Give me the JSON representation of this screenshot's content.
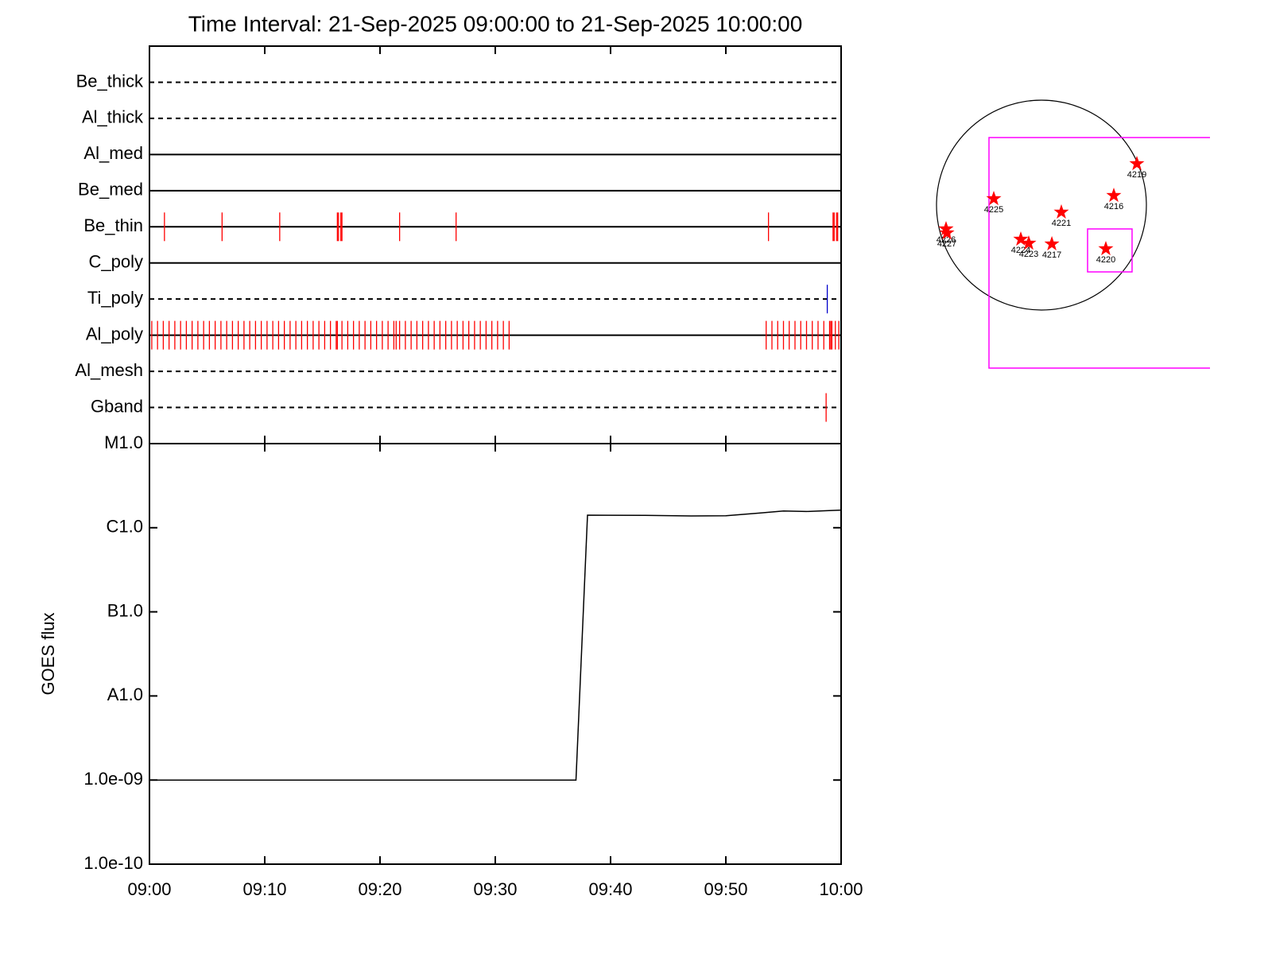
{
  "chart_data": [
    {
      "type": "timeline",
      "title": "Time Interval: 21-Sep-2025 09:00:00 to 21-Sep-2025 10:00:00",
      "categories": [
        "Be_thick",
        "Al_thick",
        "Al_med",
        "Be_med",
        "Be_thin",
        "C_poly",
        "Ti_poly",
        "Al_poly",
        "Al_mesh",
        "Gband"
      ],
      "line_styles": [
        "dashed",
        "dashed",
        "solid",
        "solid",
        "solid",
        "solid",
        "dashed",
        "solid",
        "dashed",
        "dashed"
      ],
      "events": [
        [],
        [],
        [],
        [],
        [
          1.3,
          6.3,
          11.3,
          16.3,
          16.4,
          16.6,
          16.7,
          21.7,
          26.6,
          53.7,
          59.3,
          59.4,
          59.6,
          59.7
        ],
        [],
        [
          58.8
        ],
        [
          0.2,
          0.7,
          1.2,
          1.7,
          2.2,
          2.7,
          3.2,
          3.7,
          4.2,
          4.7,
          5.2,
          5.7,
          6.2,
          6.7,
          7.2,
          7.7,
          8.2,
          8.7,
          9.2,
          9.7,
          10.2,
          10.7,
          11.2,
          11.7,
          12.2,
          12.7,
          13.2,
          13.7,
          14.2,
          14.7,
          15.2,
          15.7,
          16.2,
          16.3,
          16.7,
          17.2,
          17.7,
          18.2,
          18.7,
          19.2,
          19.7,
          20.2,
          20.7,
          21.2,
          21.4,
          21.7,
          22.2,
          22.7,
          23.2,
          23.7,
          24.2,
          24.7,
          25.2,
          25.7,
          26.2,
          26.7,
          27.2,
          27.7,
          28.2,
          28.7,
          29.2,
          29.7,
          30.2,
          30.7,
          31.2,
          53.5,
          54.0,
          54.5,
          55.0,
          55.5,
          56.0,
          56.5,
          57.0,
          57.5,
          58.0,
          58.5,
          59.0,
          59.1,
          59.2,
          59.5,
          59.8
        ],
        [],
        [
          58.7
        ]
      ],
      "event_colors": [
        "#ff0000",
        "#ff0000",
        "#ff0000",
        "#ff0000",
        "#ff0000",
        "#ff0000",
        "#0000cc",
        "#ff0000",
        "#ff0000",
        "#ff0000"
      ],
      "xlim": [
        0,
        60
      ]
    },
    {
      "type": "line",
      "ylabel": "GOES flux",
      "x": [
        0,
        37.0,
        38.0,
        43,
        47,
        50,
        53,
        55,
        57,
        60
      ],
      "values": [
        1e-09,
        1e-09,
        1.41e-06,
        1.4e-06,
        1.38e-06,
        1.39e-06,
        1.5e-06,
        1.58e-06,
        1.56e-06,
        1.62e-06
      ],
      "color": "#000000",
      "xlim": [
        0,
        60
      ],
      "xticks": [
        {
          "value": 0,
          "label": "09:00"
        },
        {
          "value": 10,
          "label": "09:10"
        },
        {
          "value": 20,
          "label": "09:20"
        },
        {
          "value": 30,
          "label": "09:30"
        },
        {
          "value": 40,
          "label": "09:40"
        },
        {
          "value": 50,
          "label": "09:50"
        },
        {
          "value": 60,
          "label": "10:00"
        }
      ],
      "ylim": [
        1e-10,
        1e-05
      ],
      "yticks": [
        {
          "value": 1e-10,
          "label": "1.0e-10"
        },
        {
          "value": 1e-09,
          "label": "1.0e-09"
        },
        {
          "value": 1e-08,
          "label": "A1.0"
        },
        {
          "value": 1e-07,
          "label": "B1.0"
        },
        {
          "value": 1e-06,
          "label": "C1.0"
        },
        {
          "value": 1e-05,
          "label": "M1.0"
        }
      ],
      "log_y": true
    },
    {
      "type": "map",
      "disk_radius": 960,
      "disk_color": "#000000",
      "labels": [
        "4219",
        "4216",
        "4225",
        "4221",
        "4226",
        "4227",
        "4224",
        "4223",
        "4217",
        "4220"
      ],
      "x": [
        873,
        662,
        -436,
        182,
        -873,
        -865,
        -189,
        -116,
        95,
        589
      ],
      "y": [
        378,
        87,
        58,
        -65,
        -218,
        -255,
        -313,
        -349,
        -356,
        -400
      ],
      "marker_color": "#ff0000",
      "boxes": [
        {
          "x0": -480,
          "x1": 1600,
          "y0": -1491,
          "y1": 618
        },
        {
          "x0": 422,
          "x1": 829,
          "y0": -611,
          "y1": -218
        }
      ],
      "box_color": "#ff00ff"
    }
  ]
}
